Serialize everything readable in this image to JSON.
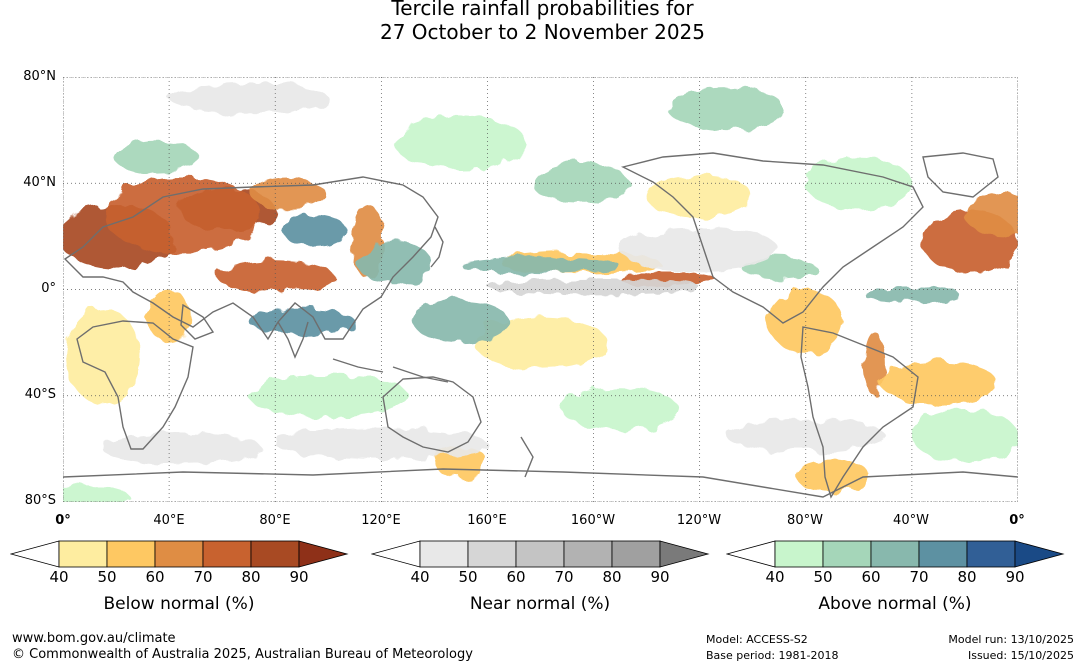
{
  "title": {
    "line1": "Tercile rainfall probabilities for",
    "line2": "27 October to 2 November 2025"
  },
  "map": {
    "projection": "equirectangular",
    "lat_range": [
      -80,
      80
    ],
    "lon_range": [
      0,
      360
    ],
    "lat_labels": [
      "80°N",
      "40°N",
      "0°",
      "40°S",
      "80°S"
    ],
    "lon_labels": [
      "0°",
      "40°E",
      "80°E",
      "120°E",
      "160°E",
      "160°W",
      "120°W",
      "80°W",
      "40°W",
      "0°"
    ],
    "gridline_style": "dotted",
    "patches": [
      {
        "cat": "below",
        "level": 5,
        "lon": 20,
        "lat": 20,
        "rlon": 22,
        "rlat": 12
      },
      {
        "cat": "below",
        "level": 5,
        "lon": 62,
        "lat": 30,
        "rlon": 18,
        "rlat": 8
      },
      {
        "cat": "below",
        "level": 4,
        "lon": 45,
        "lat": 28,
        "rlon": 30,
        "rlat": 14
      },
      {
        "cat": "below",
        "level": 3,
        "lon": 85,
        "lat": 36,
        "rlon": 14,
        "rlat": 6
      },
      {
        "cat": "below",
        "level": 4,
        "lon": 342,
        "lat": 18,
        "rlon": 18,
        "rlat": 12
      },
      {
        "cat": "below",
        "level": 3,
        "lon": 355,
        "lat": 28,
        "rlon": 15,
        "rlat": 8
      },
      {
        "cat": "below",
        "level": 4,
        "lon": 80,
        "lat": 5,
        "rlon": 22,
        "rlat": 6
      },
      {
        "cat": "below",
        "level": 3,
        "lon": 115,
        "lat": 18,
        "rlon": 6,
        "rlat": 14
      },
      {
        "cat": "below",
        "level": 4,
        "lon": 228,
        "lat": 4,
        "rlon": 18,
        "rlat": 3
      },
      {
        "cat": "below",
        "level": 2,
        "lon": 195,
        "lat": 10,
        "rlon": 30,
        "rlat": 4
      },
      {
        "cat": "below",
        "level": 3,
        "lon": 306,
        "lat": -28,
        "rlon": 4,
        "rlat": 12
      },
      {
        "cat": "below",
        "level": 2,
        "lon": 330,
        "lat": -35,
        "rlon": 22,
        "rlat": 8
      },
      {
        "cat": "below",
        "level": 2,
        "lon": 280,
        "lat": -12,
        "rlon": 14,
        "rlat": 12
      },
      {
        "cat": "below",
        "level": 2,
        "lon": 40,
        "lat": -10,
        "rlon": 8,
        "rlat": 10
      },
      {
        "cat": "below",
        "level": 2,
        "lon": 150,
        "lat": -65,
        "rlon": 10,
        "rlat": 6
      },
      {
        "cat": "below",
        "level": 2,
        "lon": 290,
        "lat": -70,
        "rlon": 14,
        "rlat": 6
      },
      {
        "cat": "below",
        "level": 1,
        "lon": 240,
        "lat": 35,
        "rlon": 20,
        "rlat": 8
      },
      {
        "cat": "below",
        "level": 1,
        "lon": 15,
        "lat": -25,
        "rlon": 14,
        "rlat": 18
      },
      {
        "cat": "below",
        "level": 1,
        "lon": 180,
        "lat": -20,
        "rlon": 25,
        "rlat": 10
      },
      {
        "cat": "above",
        "level": 4,
        "lon": 95,
        "lat": 22,
        "rlon": 12,
        "rlat": 6
      },
      {
        "cat": "above",
        "level": 4,
        "lon": 90,
        "lat": -12,
        "rlon": 20,
        "rlat": 5
      },
      {
        "cat": "above",
        "level": 3,
        "lon": 125,
        "lat": 10,
        "rlon": 14,
        "rlat": 8
      },
      {
        "cat": "above",
        "level": 3,
        "lon": 150,
        "lat": -12,
        "rlon": 18,
        "rlat": 8
      },
      {
        "cat": "above",
        "level": 3,
        "lon": 180,
        "lat": 9,
        "rlon": 30,
        "rlat": 3
      },
      {
        "cat": "above",
        "level": 3,
        "lon": 320,
        "lat": -2,
        "rlon": 18,
        "rlat": 3
      },
      {
        "cat": "above",
        "level": 2,
        "lon": 270,
        "lat": 8,
        "rlon": 14,
        "rlat": 4
      },
      {
        "cat": "above",
        "level": 2,
        "lon": 250,
        "lat": 68,
        "rlon": 22,
        "rlat": 8
      },
      {
        "cat": "above",
        "level": 2,
        "lon": 35,
        "lat": 50,
        "rlon": 16,
        "rlat": 6
      },
      {
        "cat": "above",
        "level": 2,
        "lon": 195,
        "lat": 40,
        "rlon": 18,
        "rlat": 8
      },
      {
        "cat": "above",
        "level": 1,
        "lon": 210,
        "lat": -45,
        "rlon": 22,
        "rlat": 8
      },
      {
        "cat": "above",
        "level": 1,
        "lon": 150,
        "lat": 55,
        "rlon": 25,
        "rlat": 10
      },
      {
        "cat": "above",
        "level": 1,
        "lon": 100,
        "lat": -40,
        "rlon": 30,
        "rlat": 8
      },
      {
        "cat": "above",
        "level": 1,
        "lon": 300,
        "lat": 40,
        "rlon": 20,
        "rlat": 10
      },
      {
        "cat": "above",
        "level": 1,
        "lon": 5,
        "lat": -78,
        "rlon": 20,
        "rlat": 4
      },
      {
        "cat": "above",
        "level": 1,
        "lon": 340,
        "lat": -55,
        "rlon": 20,
        "rlat": 10
      },
      {
        "cat": "near",
        "level": 2,
        "lon": 200,
        "lat": 1,
        "rlon": 40,
        "rlat": 3
      },
      {
        "cat": "near",
        "level": 1,
        "lon": 70,
        "lat": 72,
        "rlon": 30,
        "rlat": 6
      },
      {
        "cat": "near",
        "level": 1,
        "lon": 240,
        "lat": 15,
        "rlon": 30,
        "rlat": 8
      },
      {
        "cat": "near",
        "level": 1,
        "lon": 120,
        "lat": -58,
        "rlon": 40,
        "rlat": 6
      },
      {
        "cat": "near",
        "level": 1,
        "lon": 280,
        "lat": -55,
        "rlon": 30,
        "rlat": 6
      },
      {
        "cat": "near",
        "level": 1,
        "lon": 45,
        "lat": -60,
        "rlon": 30,
        "rlat": 6
      }
    ]
  },
  "colorbars": [
    {
      "id": "below",
      "label": "Below normal (%)",
      "ticks": [
        "40",
        "50",
        "60",
        "70",
        "80",
        "90"
      ],
      "colors": [
        "#ffffff",
        "#feeda0",
        "#fec862",
        "#df8d44",
        "#c8622f",
        "#a84a23",
        "#8e3018"
      ]
    },
    {
      "id": "near",
      "label": "Near normal (%)",
      "ticks": [
        "40",
        "50",
        "60",
        "70",
        "80",
        "90"
      ],
      "colors": [
        "#ffffff",
        "#e8e8e8",
        "#d6d6d6",
        "#c4c4c4",
        "#b2b2b2",
        "#a0a0a0",
        "#7a7a7a"
      ]
    },
    {
      "id": "above",
      "label": "Above normal (%)",
      "ticks": [
        "40",
        "50",
        "60",
        "70",
        "80",
        "90"
      ],
      "colors": [
        "#ffffff",
        "#c8f5cc",
        "#a5d6b9",
        "#88b8ad",
        "#5d91a2",
        "#315f96",
        "#1a4a86"
      ]
    }
  ],
  "footer": {
    "url": "www.bom.gov.au/climate",
    "copyright": "© Commonwealth of Australia 2025, Australian Bureau of Meteorology",
    "model": "Model: ACCESS-S2",
    "base_period": "Base period: 1981-2018",
    "model_run": "Model run: 13/10/2025",
    "issued": "Issued: 15/10/2025"
  }
}
